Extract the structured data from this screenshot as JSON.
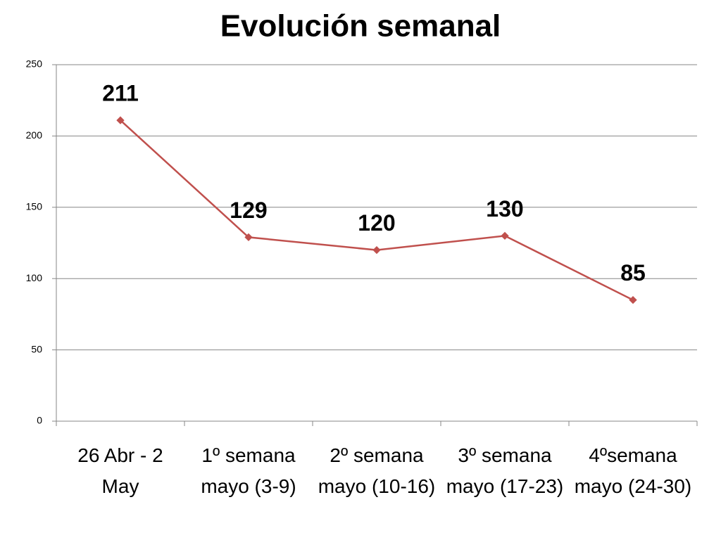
{
  "chart_data": {
    "type": "line",
    "title": "Evolución semanal",
    "categories": [
      "26 Abr - 2 May",
      "1º semana mayo (3-9)",
      "2º semana mayo (10-16)",
      "3º semana mayo (17-23)",
      "4ºsemana mayo (24-30)"
    ],
    "series": [
      {
        "name": "Evolución semanal",
        "color": "#c0504d",
        "values": [
          211,
          129,
          120,
          130,
          85
        ]
      }
    ],
    "ylim": [
      0,
      250
    ],
    "yticks": [
      0,
      50,
      100,
      150,
      200,
      250
    ],
    "grid": true
  }
}
